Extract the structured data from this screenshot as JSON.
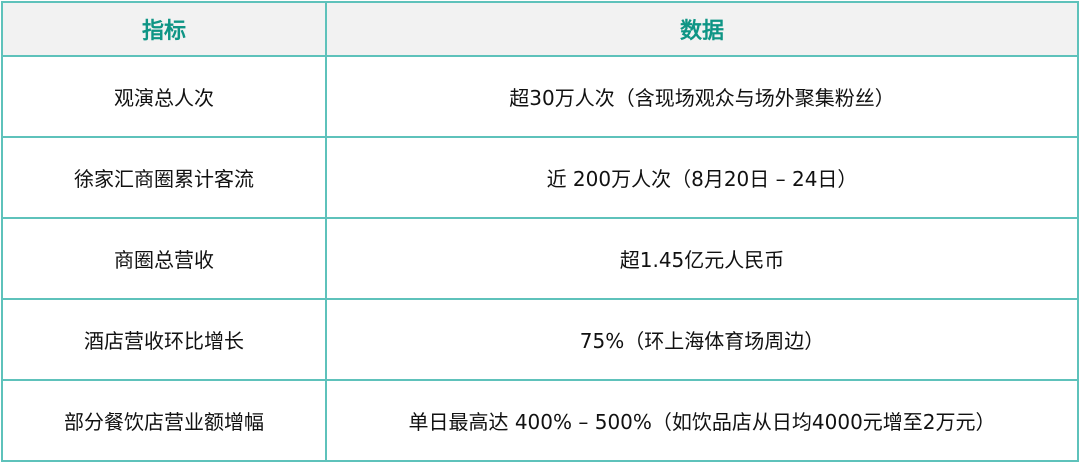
{
  "table": {
    "headers": [
      "指标",
      "数据"
    ],
    "rows": [
      [
        "观演总人次",
        "超30万人次（含现场观众与场外聚集粉丝）"
      ],
      [
        "徐家汇商圈累计客流",
        "近 200万人次（8月20日 – 24日）"
      ],
      [
        "商圈总营收",
        "超1.45亿元人民币"
      ],
      [
        "酒店营收环比增长",
        "75%（环上海体育场周边）"
      ],
      [
        "部分餐饮店营业额增幅",
        "单日最高达 400% – 500%（如饮品店从日均4000元增至2万元）"
      ]
    ]
  },
  "colors": {
    "header_text": "#0f9585",
    "border": "#5ec2bb",
    "header_bg": "#f2f2f2"
  }
}
